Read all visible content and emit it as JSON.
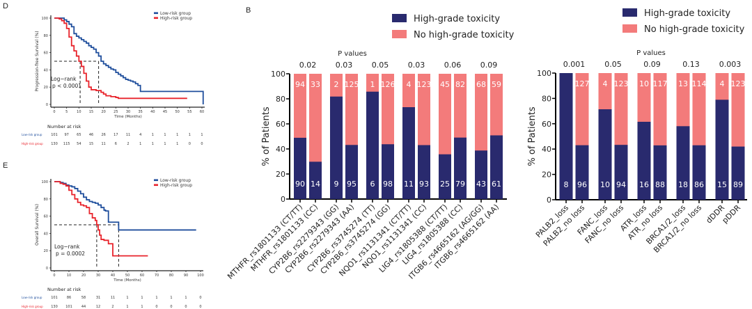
{
  "panels": {
    "D": "D",
    "E": "E",
    "B": "B"
  },
  "chart_data": [
    {
      "id": "D",
      "type": "line",
      "title": "",
      "xlabel": "Time (Months)",
      "ylabel": "Progression-free Survival (%)",
      "xlim": [
        0,
        60
      ],
      "ylim": [
        0,
        100
      ],
      "xticks": [
        0,
        5,
        10,
        15,
        20,
        25,
        30,
        35,
        40,
        45,
        50,
        55,
        60
      ],
      "yticks": [
        0,
        20,
        40,
        60,
        80,
        100
      ],
      "legend": {
        "position": "top-right",
        "entries": [
          "Low-risk group",
          "High-risk group"
        ]
      },
      "colors": {
        "low": "#1f4e9c",
        "high": "#e8232b"
      },
      "annotation": [
        "Log−rank",
        "p < 0.0001"
      ],
      "median_lines": [
        10.5,
        18
      ],
      "series": [
        {
          "name": "Low-risk group",
          "x": [
            0,
            3,
            4,
            5,
            6,
            7,
            8,
            9,
            10,
            11,
            12,
            13,
            14,
            15,
            16,
            17,
            18,
            19,
            20,
            21,
            22,
            23,
            24,
            25,
            26,
            27,
            28,
            29,
            30,
            31,
            32,
            33,
            34,
            35,
            36,
            60,
            60.5
          ],
          "y": [
            100,
            100,
            98,
            96,
            93,
            90,
            82,
            79,
            77,
            75,
            73,
            71,
            68,
            66,
            64,
            60,
            56,
            50,
            47,
            45,
            43,
            41,
            40,
            37,
            35,
            33,
            31,
            29,
            28,
            27,
            26,
            24,
            22,
            15,
            15,
            15,
            0
          ]
        },
        {
          "name": "High-risk group",
          "x": [
            0,
            2,
            3,
            4,
            5,
            6,
            7,
            8,
            9,
            10,
            11,
            12,
            13,
            14,
            15,
            16,
            17,
            18,
            19,
            20,
            21,
            22,
            23,
            24,
            25,
            26,
            54
          ],
          "y": [
            100,
            99,
            97,
            94,
            88,
            78,
            68,
            62,
            56,
            50,
            44,
            36,
            27,
            20,
            17,
            17,
            16,
            16,
            14,
            12,
            10,
            10,
            9,
            9,
            8,
            7,
            7
          ]
        }
      ],
      "risk_table": {
        "title": "Number at risk",
        "rows": [
          {
            "label": "Low-risk group",
            "values": [
              101,
              97,
              65,
              46,
              26,
              17,
              11,
              4,
              1,
              1,
              1,
              1,
              1
            ]
          },
          {
            "label": "High-risk group",
            "values": [
              130,
              115,
              54,
              15,
              11,
              6,
              2,
              1,
              1,
              1,
              1,
              0,
              0
            ]
          }
        ]
      }
    },
    {
      "id": "E",
      "type": "line",
      "title": "",
      "xlabel": "Time (Months)",
      "ylabel": "Overall Survival (%)",
      "xlim": [
        0,
        100
      ],
      "ylim": [
        0,
        100
      ],
      "xticks": [
        0,
        10,
        20,
        30,
        40,
        50,
        60,
        70,
        80,
        90,
        100
      ],
      "yticks": [
        0,
        20,
        40,
        60,
        80,
        100
      ],
      "legend": {
        "position": "top-right",
        "entries": [
          "Low-risk group",
          "High-risk group"
        ]
      },
      "colors": {
        "low": "#1f4e9c",
        "high": "#e8232b"
      },
      "annotation": [
        "Log−rank",
        "p = 0.0002"
      ],
      "median_lines": [
        29,
        44
      ],
      "series": [
        {
          "name": "Low-risk group",
          "x": [
            0,
            4,
            6,
            8,
            10,
            12,
            14,
            16,
            18,
            20,
            22,
            24,
            26,
            28,
            30,
            32,
            34,
            35,
            37,
            44,
            97
          ],
          "y": [
            100,
            99,
            98,
            96,
            95,
            94,
            92,
            89,
            86,
            82,
            79,
            77,
            76,
            75,
            73,
            70,
            67,
            66,
            53,
            44,
            44
          ]
        },
        {
          "name": "High-risk group",
          "x": [
            0,
            4,
            6,
            8,
            10,
            12,
            14,
            16,
            18,
            20,
            22,
            24,
            26,
            28,
            29,
            30,
            31,
            32,
            34,
            37,
            40,
            64
          ],
          "y": [
            100,
            98,
            97,
            95,
            90,
            85,
            80,
            76,
            73,
            72,
            70,
            63,
            58,
            55,
            50,
            44,
            38,
            33,
            32,
            28,
            14,
            14
          ]
        }
      ],
      "risk_table": {
        "title": "Number at risk",
        "rows": [
          {
            "label": "Low-risk group",
            "values": [
              101,
              86,
              58,
              31,
              11,
              1,
              1,
              1,
              1,
              1,
              0
            ]
          },
          {
            "label": "High-risk group",
            "values": [
              130,
              101,
              44,
              12,
              2,
              1,
              1,
              0,
              0,
              0,
              0
            ]
          }
        ]
      }
    },
    {
      "id": "B-left",
      "type": "bar",
      "stacked": true,
      "ylabel": "% of Patients",
      "ylim": [
        0,
        100
      ],
      "yticks": [
        0,
        20,
        40,
        60,
        80,
        100
      ],
      "pvalues_title": "P values",
      "pvalues": [
        "0.02",
        "0.03",
        "0.05",
        "0.03",
        "0.06",
        "0.09"
      ],
      "legend": {
        "position": "top",
        "entries": [
          "High-grade toxicity",
          "No high-grade toxicity"
        ]
      },
      "colors": {
        "high": "#292a6e",
        "no": "#f37b7b"
      },
      "categories": [
        "MTHFR_rs1801133 (CT/TT)",
        "MTHFR_rs1801133 (CC)",
        "CYP2B6_rs2279343 (GG)",
        "CYP2B6_rs2279343 (AA)",
        "CYP2B6_rs3745274 (TT)",
        "CYP2B6_rs3745274 (GG)",
        "NQO1_rs1131341 (CT/TT)",
        "NQO1_rs1131341 (CC)",
        "LIG4_rs1805388 (CT/TT)",
        "LIG4_rs1805388 (CC)",
        "ITGB6_rs4665162 (AG/GG)",
        "ITGB6_rs4665162 (AA)"
      ],
      "series": [
        {
          "name": "High-grade toxicity",
          "counts": [
            90,
            14,
            9,
            95,
            6,
            98,
            11,
            93,
            25,
            79,
            43,
            61
          ]
        },
        {
          "name": "No high-grade toxicity",
          "counts": [
            94,
            33,
            2,
            125,
            1,
            126,
            4,
            123,
            45,
            82,
            68,
            59
          ]
        }
      ]
    },
    {
      "id": "B-right",
      "type": "bar",
      "stacked": true,
      "ylabel": "% of Patients",
      "ylim": [
        0,
        100
      ],
      "yticks": [
        0,
        20,
        40,
        60,
        80,
        100
      ],
      "pvalues_title": "P values",
      "pvalues": [
        "0.001",
        "0.05",
        "0.09",
        "0.13",
        "0.003"
      ],
      "legend": {
        "position": "top",
        "entries": [
          "High-grade toxicity",
          "No high-grade toxicity"
        ]
      },
      "colors": {
        "high": "#292a6e",
        "no": "#f37b7b"
      },
      "categories": [
        "PALB2_loss",
        "PALB2_no loss",
        "FANC_loss",
        "FANC_no loss",
        "ATR_loss",
        "ATR_no loss",
        "BRCA1/2_loss",
        "BRCA1/2_no loss",
        "dDDR",
        "pDDR"
      ],
      "series": [
        {
          "name": "High-grade toxicity",
          "counts": [
            8,
            96,
            10,
            94,
            16,
            88,
            18,
            86,
            15,
            89
          ]
        },
        {
          "name": "No high-grade toxicity",
          "counts": [
            0,
            127,
            4,
            123,
            10,
            117,
            13,
            114,
            4,
            123
          ]
        }
      ]
    }
  ]
}
